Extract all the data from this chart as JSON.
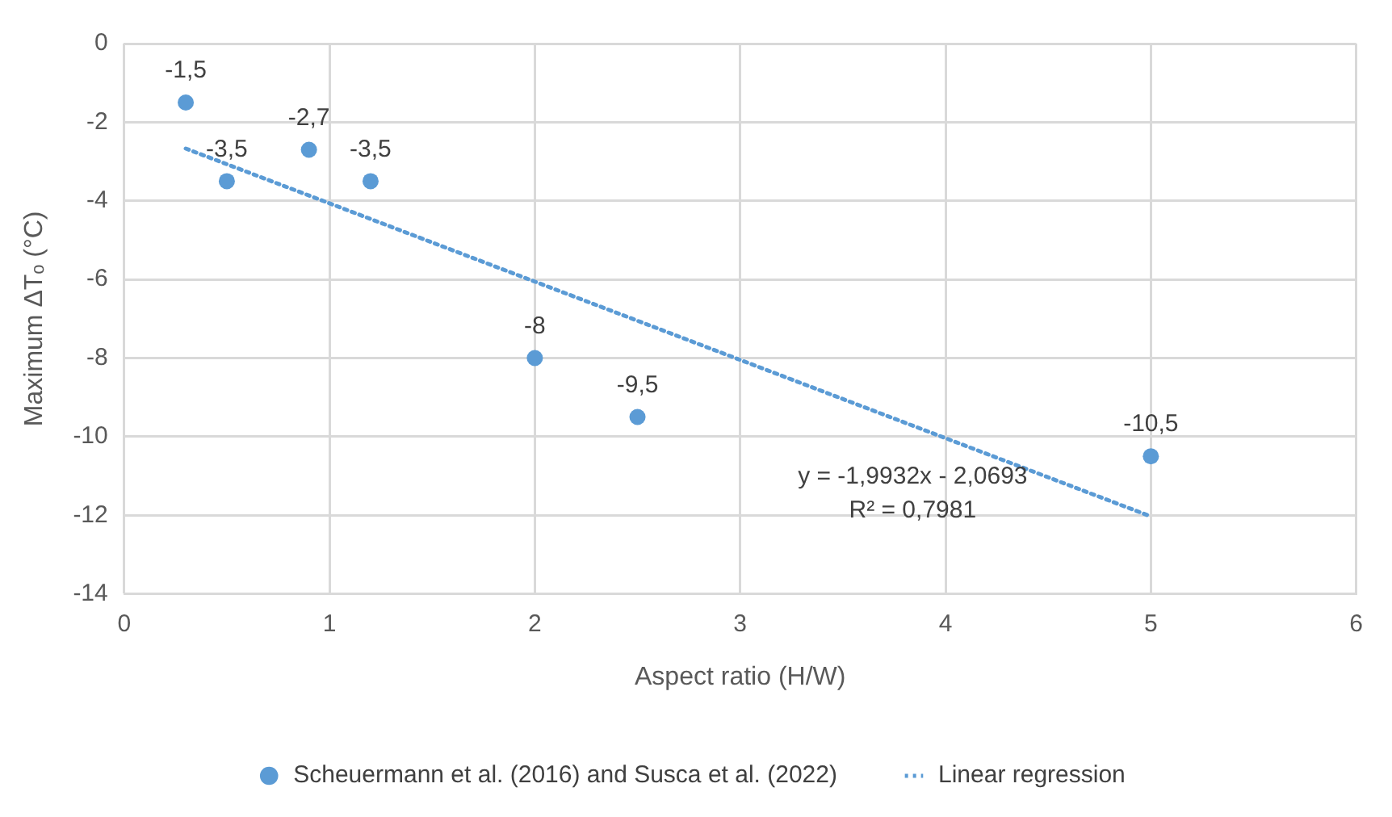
{
  "chart_data": {
    "type": "scatter",
    "xlabel": "Aspect ratio (H/W)",
    "ylabel": "Maximum ΔTₒ (°C)",
    "xlim": [
      0,
      6
    ],
    "xticks": [
      0,
      1,
      2,
      3,
      4,
      5,
      6
    ],
    "ylim": [
      -14,
      0
    ],
    "yticks": [
      -14,
      -12,
      -10,
      -8,
      -6,
      -4,
      -2,
      0
    ],
    "grid": true,
    "legend": "bottom",
    "series": [
      {
        "name": "Scheuermann et al. (2016) and Susca et al. (2022)",
        "type": "scatter",
        "color": "#5b9bd5",
        "marker": "circle",
        "x": [
          0.3,
          0.5,
          0.9,
          1.2,
          2,
          2.5,
          5
        ],
        "values": [
          -1.5,
          -3.5,
          -2.7,
          -3.5,
          -8,
          -9.5,
          -10.5
        ],
        "value_labels": [
          "-1,5",
          "-3,5",
          "-2,7",
          "-3,5",
          "-8",
          "-9,5",
          "-10,5"
        ]
      },
      {
        "name": "Linear regression",
        "type": "line",
        "color": "#5b9bd5",
        "marker": "none",
        "line_style": "dotted",
        "x": [
          0.3,
          5
        ],
        "values": [
          -2.67,
          -12.03
        ]
      }
    ],
    "annotations": [
      "y = -1,9932x - 2,0693",
      "R² = 0,7981"
    ]
  }
}
